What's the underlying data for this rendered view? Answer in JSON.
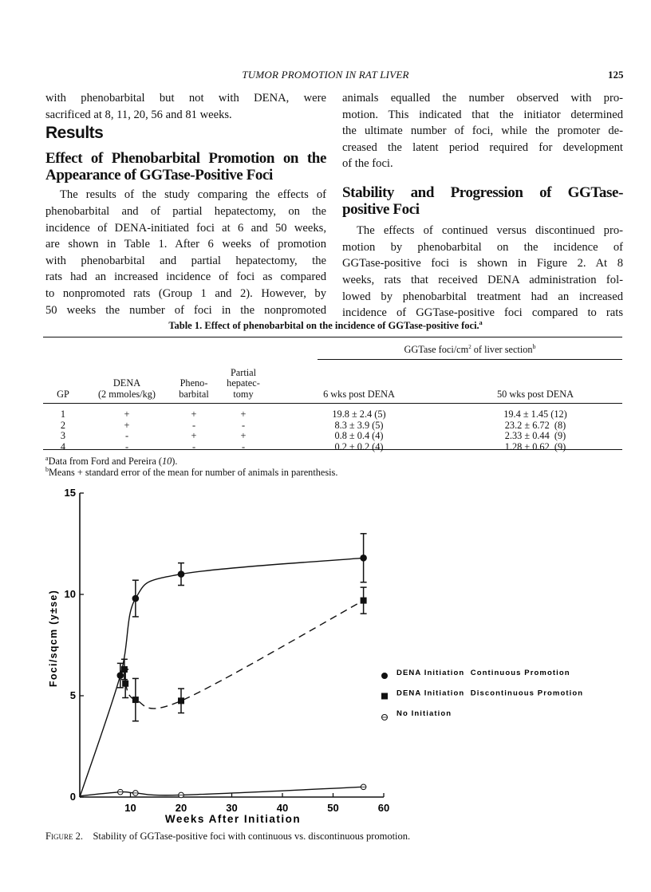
{
  "header": {
    "running_title": "TUMOR PROMOTION IN RAT LIVER",
    "page_number": "125"
  },
  "left_column": {
    "intro_lines": [
      "with phenobarbital but not with DENA, were",
      "sacrificed at 8, 11, 20, 56 and 81 weeks."
    ],
    "section_title": "Results",
    "subsection_title_lines": [
      "Effect of Phenobarbital Promotion on the",
      "Appearance of GGTase-Positive Foci"
    ],
    "paragraph_lines": [
      "The results of the study comparing the effects of",
      "phenobarbital and of partial hepatectomy, on the",
      "incidence of DENA-initiated foci at 6 and 50 weeks,",
      "are shown in Table 1. After 6 weeks of promotion",
      "with phenobarbital and partial hepatectomy, the",
      "rats had an increased incidence of foci as compared",
      "to nonpromoted rats (Group 1 and 2). However, by",
      "50 weeks the number of foci in the nonpromoted"
    ]
  },
  "right_column": {
    "continued_lines": [
      "animals equalled the number observed with pro-",
      "motion. This indicated that the initiator determined",
      "the ultimate number of foci, while the promoter de-",
      "creased the latent period required for development",
      "of the foci."
    ],
    "subsection_title_lines": [
      "Stability and Progression of GGTase-",
      "positive Foci"
    ],
    "paragraph_lines": [
      "The effects of continued versus discontinued pro-",
      "motion by phenobarbital on the incidence of",
      "GGTase-positive foci is shown in Figure 2. At 8",
      "weeks, rats that received DENA administration fol-",
      "lowed by phenobarbital treatment had an increased",
      "incidence of GGTase-positive foci compared to rats"
    ]
  },
  "table1": {
    "title": "Table 1. Effect of phenobarbital on the incidence of GGTase-positive foci.",
    "title_sup": "a",
    "group_header": "GGTase foci/cm",
    "group_header_sup2": "2",
    "group_header_rest": " of liver section",
    "group_header_sup": "b",
    "columns": [
      {
        "line1": "",
        "line2": "",
        "line3": "GP"
      },
      {
        "line1": "",
        "line2": "DENA",
        "line3": "(2 mmoles/kg)"
      },
      {
        "line1": "",
        "line2": "Pheno-",
        "line3": "barbital"
      },
      {
        "line1": "Partial",
        "line2": "hepatec-",
        "line3": "tomy"
      },
      {
        "line1": "",
        "line2": "",
        "line3": "6 wks post DENA"
      },
      {
        "line1": "",
        "line2": "",
        "line3": "50 wks post DENA"
      }
    ],
    "rows": [
      [
        "1",
        "+",
        "+",
        "+",
        "19.8 ± 2.4 (5)",
        "19.4 ± 1.45 (12)"
      ],
      [
        "2",
        "+",
        "-",
        "-",
        "8.3 ± 3.9 (5)",
        "23.2 ± 6.72  (8)"
      ],
      [
        "3",
        "-",
        "+",
        "+",
        "0.8 ± 0.4 (4)",
        "2.33 ± 0.44  (9)"
      ],
      [
        "4",
        "-",
        "-",
        "-",
        "0.2 ± 0.2 (4)",
        "1.28 ± 0.62  (9)"
      ]
    ],
    "footnotes": [
      {
        "mark": "a",
        "text": "Data from Ford and Pereira (",
        "ref": "10",
        "end": ")."
      },
      {
        "mark": "b",
        "text": "Means + standard error of the mean for number of animals in parenthesis.",
        "ref": "",
        "end": ""
      }
    ]
  },
  "chart_data": {
    "type": "line",
    "title": "",
    "xlabel": "Weeks After Initiation",
    "ylabel": "Foci/sqcm (y±se)",
    "xlim": [
      0,
      60
    ],
    "ylim": [
      0,
      15
    ],
    "x_ticks": [
      10,
      20,
      30,
      40,
      50,
      60
    ],
    "y_ticks": [
      0,
      5,
      10,
      15
    ],
    "grid": false,
    "legend_position": "right",
    "series": [
      {
        "name": "DENA Initiation  Continuous Promotion",
        "marker": "filled-circle",
        "line": "solid",
        "x": [
          0,
          8,
          11,
          20,
          56
        ],
        "y": [
          0,
          6.0,
          9.8,
          11.0,
          11.8
        ],
        "error": [
          0,
          0.6,
          0.9,
          0.55,
          1.2
        ]
      },
      {
        "name": "DENA Initiation  Discontinuous Promotion",
        "marker": "filled-square",
        "line": "dashed",
        "x": [
          8.8,
          9,
          11,
          20,
          56
        ],
        "y": [
          6.3,
          5.6,
          4.8,
          4.75,
          9.7
        ],
        "error": [
          0.5,
          0.7,
          1.05,
          0.6,
          0.65
        ]
      },
      {
        "name": "No Initiation",
        "marker": "open-circle",
        "line": "solid",
        "x": [
          0,
          8,
          11,
          20,
          56
        ],
        "y": [
          0.05,
          0.25,
          0.2,
          0.1,
          0.5
        ],
        "error": [
          0,
          0,
          0,
          0,
          0
        ]
      }
    ]
  },
  "figure_caption": {
    "label": "Figure 2.",
    "text": "Stability of GGTase-positive foci with continuous vs. discontinuous promotion."
  }
}
